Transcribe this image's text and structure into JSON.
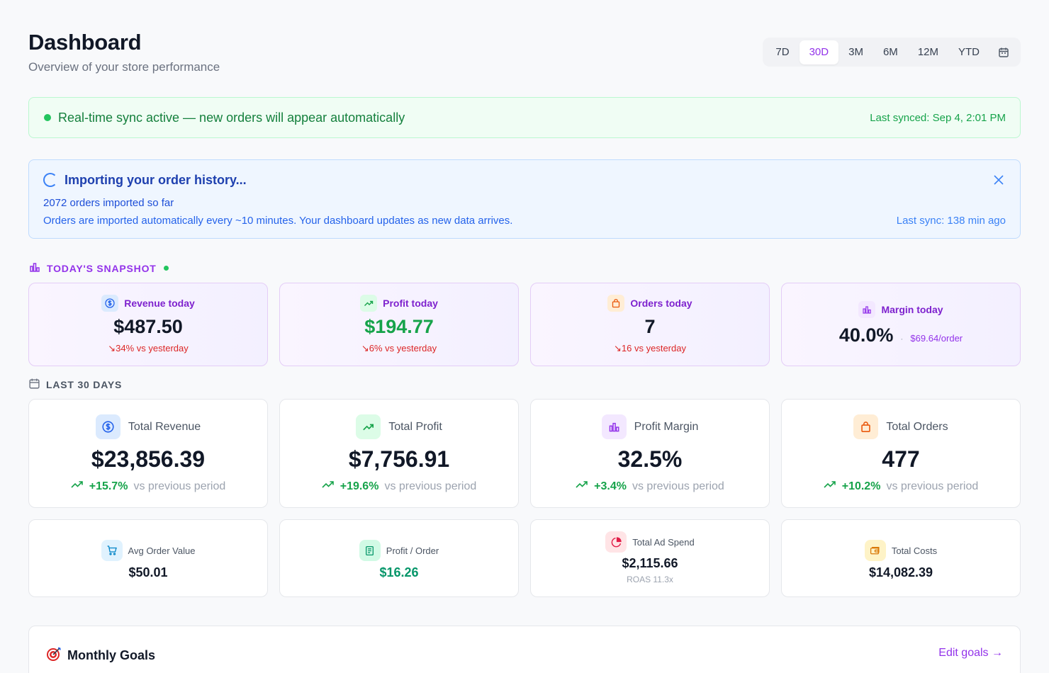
{
  "header": {
    "title": "Dashboard",
    "subtitle": "Overview of your store performance",
    "ranges": [
      "7D",
      "30D",
      "3M",
      "6M",
      "12M",
      "YTD"
    ],
    "active_range": "30D"
  },
  "sync": {
    "message": "Real-time sync active — new orders will appear automatically",
    "last_synced": "Last synced: Sep 4, 2:01 PM"
  },
  "import": {
    "title": "Importing your order history...",
    "count": "2072 orders imported so far",
    "note": "Orders are imported automatically every ~10 minutes. Your dashboard updates as new data arrives.",
    "last_sync": "Last sync: 138 min ago"
  },
  "snapshot": {
    "heading": "TODAY'S SNAPSHOT",
    "cards": [
      {
        "label": "Revenue today",
        "value": "$487.50",
        "delta": "↘34% vs yesterday",
        "icon": "dollar-icon"
      },
      {
        "label": "Profit today",
        "value": "$194.77",
        "delta": "↘6% vs yesterday",
        "icon": "trending-up-icon"
      },
      {
        "label": "Orders today",
        "value": "7",
        "delta": "↘16 vs yesterday",
        "icon": "shopping-bag-icon"
      },
      {
        "label": "Margin today",
        "value": "40.0%",
        "sep": "·",
        "sub": "$69.64/order",
        "icon": "bar-chart-icon"
      }
    ]
  },
  "period": {
    "heading": "LAST 30 DAYS",
    "vs_label": "vs previous period",
    "kpis": [
      {
        "label": "Total Revenue",
        "value": "$23,856.39",
        "delta": "+15.7%",
        "icon": "dollar-icon"
      },
      {
        "label": "Total Profit",
        "value": "$7,756.91",
        "delta": "+19.6%",
        "icon": "trending-up-icon"
      },
      {
        "label": "Profit Margin",
        "value": "32.5%",
        "delta": "+3.4%",
        "icon": "bar-chart-icon"
      },
      {
        "label": "Total Orders",
        "value": "477",
        "delta": "+10.2%",
        "icon": "shopping-bag-icon"
      }
    ],
    "minis": [
      {
        "label": "Avg Order Value",
        "value": "$50.01",
        "icon": "cart-icon"
      },
      {
        "label": "Profit / Order",
        "value": "$16.26",
        "icon": "receipt-icon"
      },
      {
        "label": "Total Ad Spend",
        "value": "$2,115.66",
        "sub": "ROAS 11.3x",
        "icon": "pie-chart-icon"
      },
      {
        "label": "Total Costs",
        "value": "$14,082.39",
        "icon": "wallet-icon"
      }
    ]
  },
  "goals": {
    "title": "Monthly Goals",
    "edit": "Edit goals →",
    "icon": "target-icon"
  },
  "colors": {
    "accent": "#9333ea",
    "green": "#16a34a",
    "red": "#dc2626",
    "blue": "#2563eb"
  }
}
